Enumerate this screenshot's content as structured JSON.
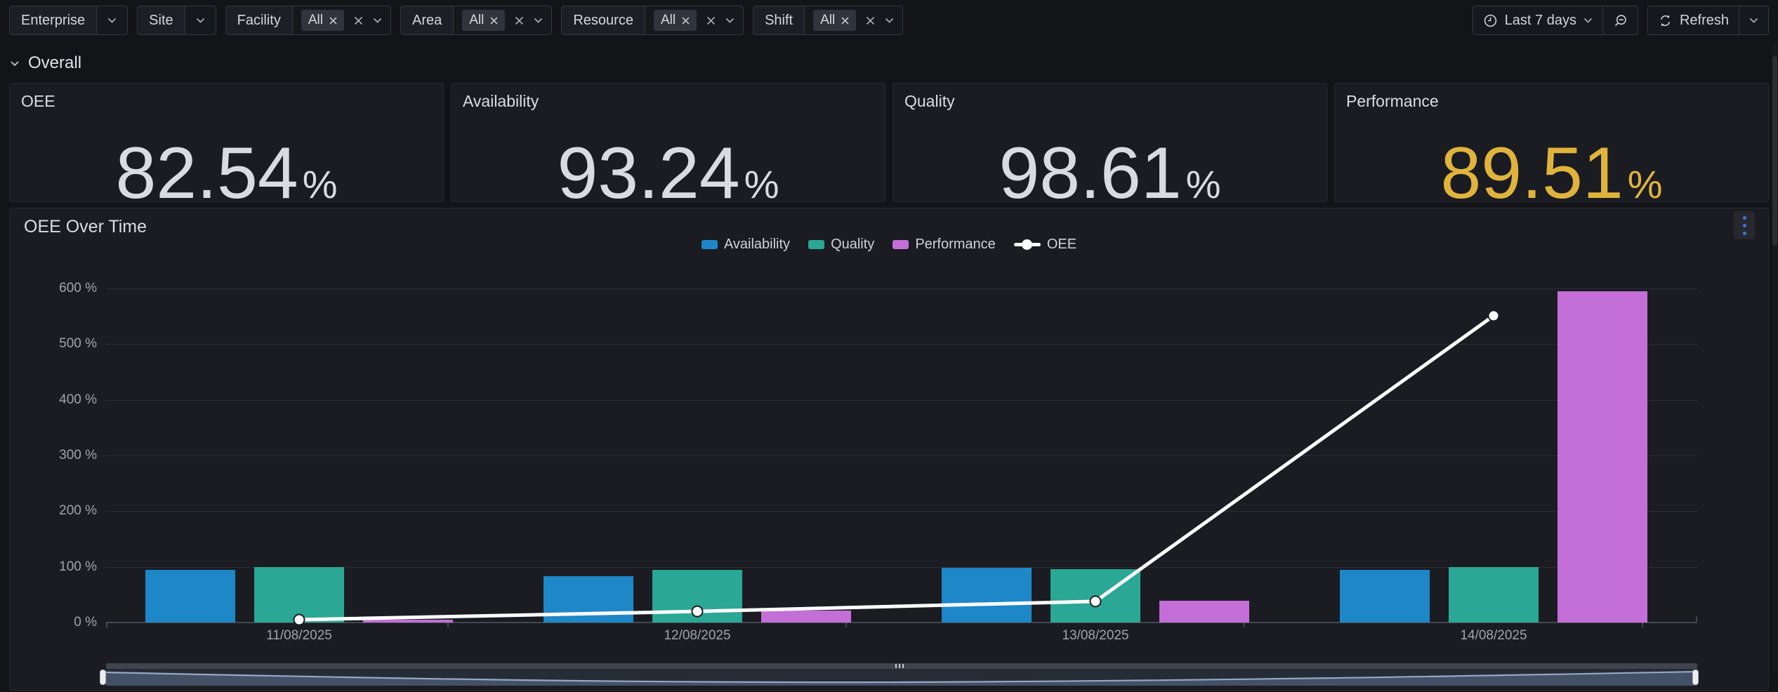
{
  "filters": {
    "enterprise": {
      "label": "Enterprise"
    },
    "site": {
      "label": "Site"
    },
    "facility": {
      "label": "Facility",
      "value": "All"
    },
    "area": {
      "label": "Area",
      "value": "All"
    },
    "resource": {
      "label": "Resource",
      "value": "All"
    },
    "shift": {
      "label": "Shift",
      "value": "All"
    }
  },
  "time_controls": {
    "range_label": "Last 7 days",
    "refresh_label": "Refresh"
  },
  "icons": {
    "time_range": "clock-icon",
    "zoom_out": "magnifier-minus-icon",
    "refresh": "sync-arrows-icon",
    "dropdown": "chevron-down-icon",
    "clear": "close-icon",
    "panel_menu": "kebab-menu-icon",
    "section_collapse": "chevron-down-icon"
  },
  "section": {
    "title": "Overall"
  },
  "stats": [
    {
      "title": "OEE",
      "value": "82.54",
      "unit": "%",
      "color": "#D9DBE1"
    },
    {
      "title": "Availability",
      "value": "93.24",
      "unit": "%",
      "color": "#D9DBE1"
    },
    {
      "title": "Quality",
      "value": "98.61",
      "unit": "%",
      "color": "#D9DBE1"
    },
    {
      "title": "Performance",
      "value": "89.51",
      "unit": "%",
      "color": "#E0B43C"
    }
  ],
  "chart_panel": {
    "title": "OEE Over Time"
  },
  "chart_data": {
    "type": "bar",
    "title": "OEE Over Time",
    "categories": [
      "11/08/2025",
      "12/08/2025",
      "13/08/2025",
      "14/08/2025"
    ],
    "series": [
      {
        "name": "Availability",
        "type": "bar",
        "color": "#1E87C8",
        "values": [
          95,
          83,
          98,
          94
        ]
      },
      {
        "name": "Quality",
        "type": "bar",
        "color": "#2AA795",
        "values": [
          99,
          95,
          96,
          99
        ]
      },
      {
        "name": "Performance",
        "type": "bar",
        "color": "#C46ED8",
        "values": [
          5,
          22,
          39,
          595
        ]
      },
      {
        "name": "OEE",
        "type": "line",
        "color": "#FFFFFF",
        "values": [
          5,
          20,
          38,
          551
        ]
      }
    ],
    "xlabel": "",
    "ylabel": "",
    "yticks": [
      0,
      100,
      200,
      300,
      400,
      500,
      600
    ],
    "ytick_suffix": " %",
    "ylim": [
      0,
      620
    ],
    "grid": true,
    "legend_position": "top-center"
  },
  "colors": {
    "accent_blue": "#3E74DB",
    "performance_value": "#E0B43C"
  }
}
